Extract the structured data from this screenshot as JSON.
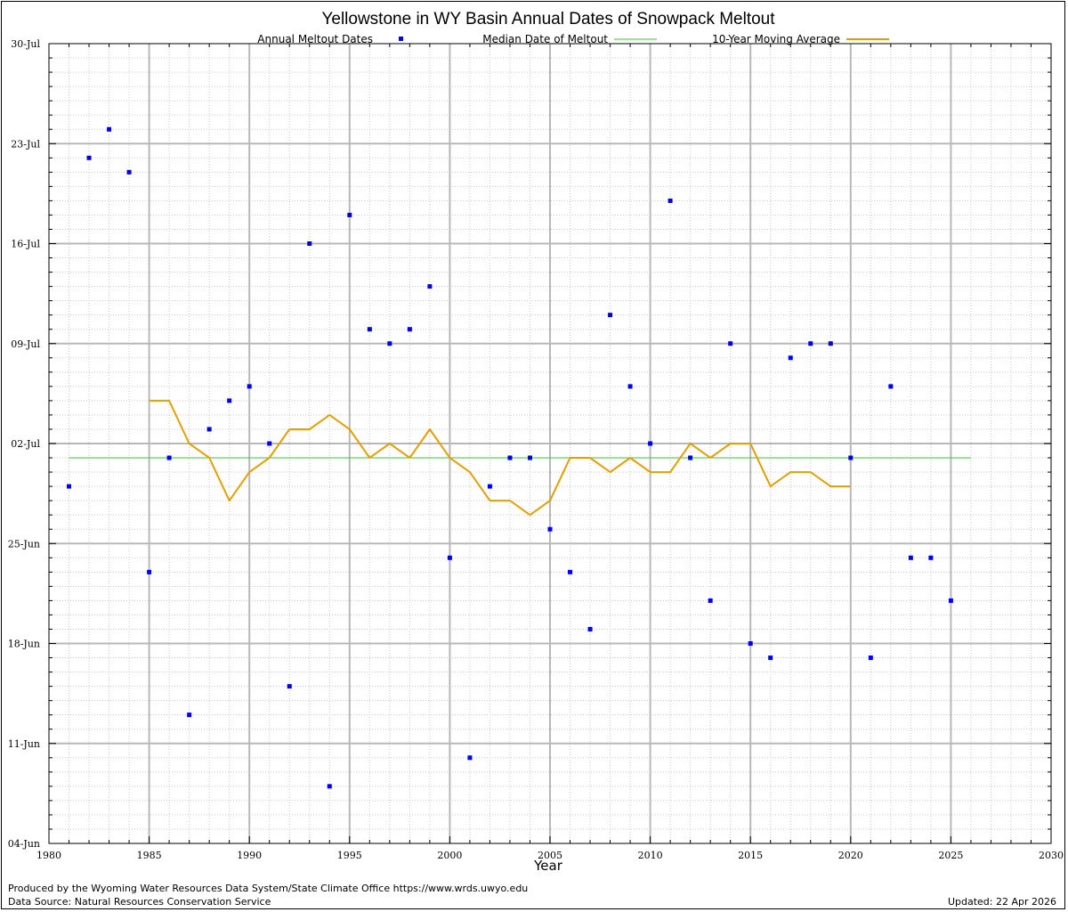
{
  "footer": {
    "produced_by": "Produced by the Wyoming Water Resources Data System/State Climate Office https://www.wrds.uwyo.edu",
    "data_source": "Data Source: Natural Resources Conservation Service",
    "updated": "Updated: 22 Apr 2026"
  },
  "colors": {
    "points": "#0000ee",
    "median": "#33cc33",
    "moving_average": "#e69f00",
    "major_grid": "#b8b8b8",
    "minor_grid": "#c8c8c8"
  },
  "chart_data": {
    "type": "scatter",
    "title": "Yellowstone in WY Basin Annual Dates of Snowpack Meltout",
    "xlabel": "Year",
    "ylabel": "",
    "xlim": [
      1980,
      2030
    ],
    "xticks": [
      1980,
      1985,
      1990,
      1995,
      2000,
      2005,
      2010,
      2015,
      2020,
      2025,
      2030
    ],
    "ylim": [
      "2026-06-04",
      "2026-07-30"
    ],
    "yticks": [
      {
        "label": "04-Jun",
        "date": "2026-06-04"
      },
      {
        "label": "11-Jun",
        "date": "2026-06-11"
      },
      {
        "label": "18-Jun",
        "date": "2026-06-18"
      },
      {
        "label": "25-Jun",
        "date": "2026-06-25"
      },
      {
        "label": "02-Jul",
        "date": "2026-07-02"
      },
      {
        "label": "09-Jul",
        "date": "2026-07-09"
      },
      {
        "label": "16-Jul",
        "date": "2026-07-16"
      },
      {
        "label": "23-Jul",
        "date": "2026-07-23"
      },
      {
        "label": "30-Jul",
        "date": "2026-07-30"
      }
    ],
    "grid": true,
    "legend_position": "top",
    "series": [
      {
        "name": "Annual Meltout Dates",
        "type": "scatter",
        "x": [
          1981,
          1982,
          1983,
          1984,
          1985,
          1986,
          1987,
          1988,
          1989,
          1990,
          1991,
          1992,
          1993,
          1994,
          1995,
          1996,
          1997,
          1998,
          1999,
          2000,
          2001,
          2002,
          2003,
          2004,
          2005,
          2006,
          2007,
          2008,
          2009,
          2010,
          2011,
          2012,
          2013,
          2014,
          2015,
          2016,
          2017,
          2018,
          2019,
          2020,
          2021,
          2022,
          2023,
          2024,
          2025
        ],
        "y": [
          "2026-06-29",
          "2026-07-22",
          "2026-07-24",
          "2026-07-21",
          "2026-06-23",
          "2026-07-01",
          "2026-06-13",
          "2026-07-03",
          "2026-07-05",
          "2026-07-06",
          "2026-07-02",
          "2026-06-15",
          "2026-07-16",
          "2026-06-08",
          "2026-07-18",
          "2026-07-10",
          "2026-07-09",
          "2026-07-10",
          "2026-07-13",
          "2026-06-24",
          "2026-06-10",
          "2026-06-29",
          "2026-07-01",
          "2026-07-01",
          "2026-06-26",
          "2026-06-23",
          "2026-06-19",
          "2026-07-11",
          "2026-07-06",
          "2026-07-02",
          "2026-07-19",
          "2026-07-01",
          "2026-06-21",
          "2026-07-09",
          "2026-06-18",
          "2026-06-17",
          "2026-07-08",
          "2026-07-09",
          "2026-07-09",
          "2026-07-01",
          "2026-06-17",
          "2026-07-06",
          "2026-06-24",
          "2026-06-24",
          "2026-06-21"
        ]
      },
      {
        "name": "Median Date of Meltout",
        "type": "line",
        "x": [
          1981,
          2026
        ],
        "y": [
          "2026-07-01",
          "2026-07-01"
        ]
      },
      {
        "name": "10-Year Moving Average",
        "type": "line",
        "x": [
          1985,
          1986,
          1987,
          1988,
          1989,
          1990,
          1991,
          1992,
          1993,
          1994,
          1995,
          1996,
          1997,
          1998,
          1999,
          2000,
          2001,
          2002,
          2003,
          2004,
          2005,
          2006,
          2007,
          2008,
          2009,
          2010,
          2011,
          2012,
          2013,
          2014,
          2015,
          2016,
          2017,
          2018,
          2019,
          2020
        ],
        "y": [
          "2026-07-05",
          "2026-07-05",
          "2026-07-02",
          "2026-07-01",
          "2026-06-28",
          "2026-06-30",
          "2026-07-01",
          "2026-07-03",
          "2026-07-03",
          "2026-07-04",
          "2026-07-03",
          "2026-07-01",
          "2026-07-02",
          "2026-07-01",
          "2026-07-03",
          "2026-07-01",
          "2026-06-30",
          "2026-06-28",
          "2026-06-28",
          "2026-06-27",
          "2026-06-28",
          "2026-07-01",
          "2026-07-01",
          "2026-07-00",
          "2026-07-01",
          "2026-07-00",
          "2026-07-00",
          "2026-07-02",
          "2026-07-01",
          "2026-07-02",
          "2026-07-02",
          "2026-06-29",
          "2026-06-30",
          "2026-06-30",
          "2026-06-29",
          "2026-06-29"
        ]
      }
    ]
  }
}
